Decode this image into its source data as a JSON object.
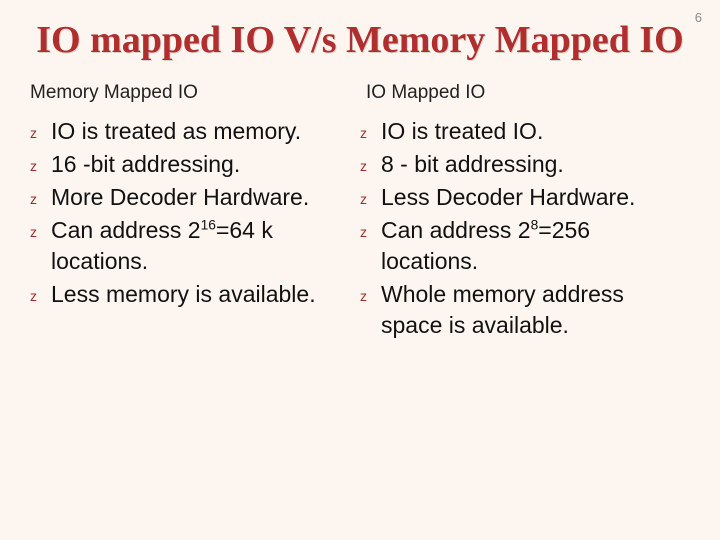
{
  "page_number": "6",
  "title": "IO mapped IO V/s Memory Mapped IO",
  "bullet_glyph": "z",
  "colors": {
    "background": "#fdf6f0",
    "title_color": "#b02e2e",
    "bullet_color": "#9b2d2d",
    "text_color": "#111111",
    "header_color": "#222222",
    "page_number_color": "#8a8a8a"
  },
  "typography": {
    "title_fontsize": 38,
    "header_fontsize": 19,
    "body_fontsize": 23,
    "bullet_fontsize": 14,
    "title_family": "Georgia",
    "body_family": "Arial"
  },
  "left": {
    "header": "Memory Mapped IO",
    "items": [
      "IO is treated as memory.",
      "16 -bit addressing.",
      "More Decoder Hardware.",
      "Can address 2<sup>16</sup>=64 k locations.",
      "Less memory is available."
    ]
  },
  "right": {
    "header": "IO Mapped IO",
    "items": [
      "IO is treated IO.",
      "8 - bit addressing.",
      "Less Decoder Hardware.",
      "Can address 2<sup>8</sup>=256 locations.",
      "Whole memory address space is available."
    ]
  }
}
